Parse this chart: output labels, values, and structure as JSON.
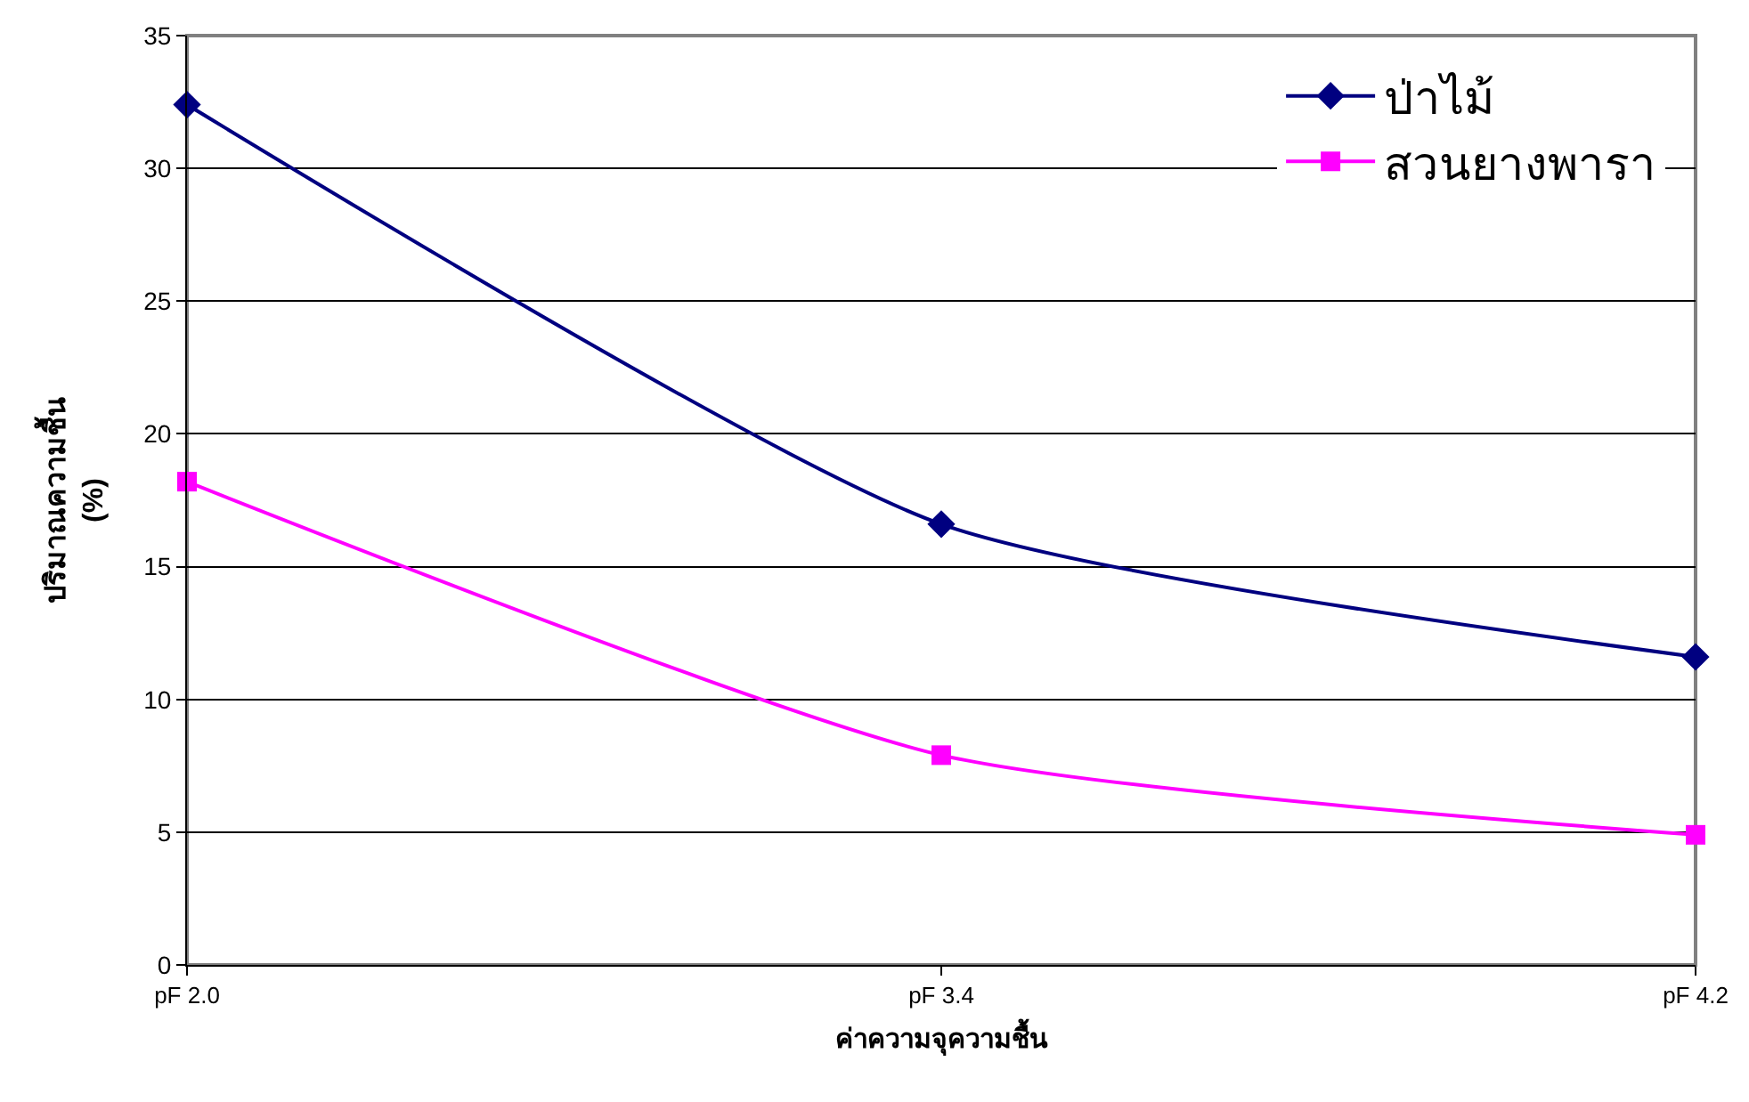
{
  "chart_data": {
    "type": "line",
    "xlabel": "ค่าความจุความชื้น",
    "ylabel": "ปริมาณความชื้น\n(%)",
    "categories": [
      "pF 2.0",
      "pF 3.4",
      "pF 4.2"
    ],
    "series": [
      {
        "name": "ป่าไม้",
        "color": "#000080",
        "marker": "diamond",
        "values": [
          32.4,
          16.6,
          11.6
        ]
      },
      {
        "name": "สวนยางพารา",
        "color": "#ff00ff",
        "marker": "square",
        "values": [
          18.2,
          7.9,
          4.9
        ]
      }
    ],
    "ylim": [
      0,
      35
    ],
    "yticks": [
      0,
      5,
      10,
      15,
      20,
      25,
      30,
      35
    ],
    "grid": "y",
    "legend": "top right",
    "line_style": "solid"
  }
}
